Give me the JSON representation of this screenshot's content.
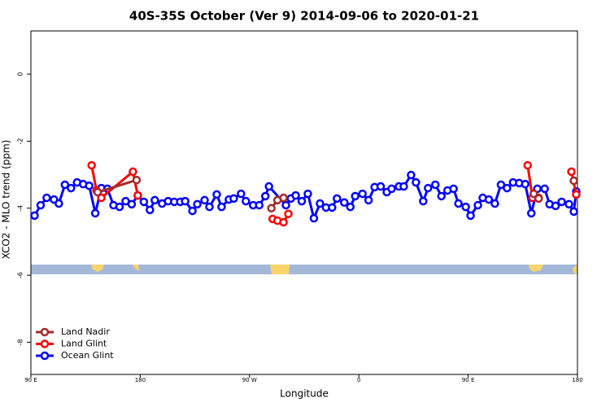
{
  "chart_data": {
    "type": "line",
    "title": "40S-35S October (Ver 9)   2014-09-06 to 2020-01-21",
    "x_label": "Longitude",
    "y_label": "XCO2 - MLO trend (ppm)",
    "xlim": [
      90,
      540
    ],
    "ylim": [
      -8.96,
      1.29
    ],
    "xticks": [
      {
        "value": 90,
        "label": "90 E"
      },
      180,
      {
        "value": 270,
        "label": "90 W"
      },
      {
        "value": 360,
        "label": "0"
      },
      {
        "value": 450,
        "label": "90 E"
      },
      {
        "value": 540,
        "label": "180"
      }
    ],
    "yticks": [
      0,
      -2,
      -4,
      -6,
      -8
    ],
    "legend": "bottom-left",
    "series": [
      {
        "name": "Land Nadir",
        "color": "#a52a2a",
        "x": [
          145,
          177,
          null,
          288,
          293,
          298,
          null,
          504,
          508,
          null,
          537
        ],
        "values": [
          -3.52,
          -3.16,
          null,
          -4.0,
          -3.76,
          -3.69,
          null,
          -3.57,
          -3.71,
          null,
          -3.18
        ]
      },
      {
        "name": "Land Glint",
        "color": "#ff0000",
        "x": [
          140,
          144,
          148,
          174,
          178,
          null,
          289,
          293,
          298,
          302,
          null,
          499,
          503,
          508,
          null,
          535,
          539
        ],
        "values": [
          -2.72,
          -3.47,
          -3.69,
          -2.91,
          -3.62,
          null,
          -4.32,
          -4.37,
          -4.42,
          -4.17,
          null,
          -2.72,
          -3.69,
          -3.69,
          null,
          -2.91,
          -3.59
        ]
      },
      {
        "name": "Ocean Glint",
        "color": "#0000ff",
        "x": [
          93,
          98,
          103,
          109,
          113,
          118,
          123,
          128,
          133,
          138,
          143,
          148,
          153,
          158,
          163,
          168,
          173,
          178,
          183,
          188,
          192,
          198,
          203,
          208,
          213,
          217,
          223,
          227,
          233,
          237,
          243,
          247,
          253,
          257,
          263,
          267,
          273,
          278,
          283,
          286,
          300,
          304,
          308,
          313,
          318,
          323,
          328,
          333,
          338,
          342,
          348,
          353,
          357,
          363,
          368,
          373,
          378,
          383,
          387,
          393,
          397,
          403,
          407,
          413,
          417,
          423,
          428,
          433,
          438,
          442,
          448,
          452,
          458,
          462,
          467,
          472,
          477,
          482,
          487,
          492,
          497,
          502,
          507,
          513,
          517,
          522,
          527,
          533,
          537,
          539
        ],
        "values": [
          -4.22,
          -3.91,
          -3.69,
          -3.74,
          -3.86,
          -3.3,
          -3.4,
          -3.23,
          -3.28,
          -3.33,
          -4.15,
          -3.4,
          -3.42,
          -3.91,
          -3.96,
          -3.79,
          -3.88,
          -3.62,
          -3.81,
          -4.05,
          -3.76,
          -3.86,
          -3.79,
          -3.81,
          -3.81,
          -3.79,
          -4.08,
          -3.88,
          -3.76,
          -3.96,
          -3.59,
          -3.96,
          -3.74,
          -3.71,
          -3.57,
          -3.79,
          -3.91,
          -3.91,
          -3.64,
          -3.35,
          -3.91,
          -3.71,
          -3.62,
          -3.79,
          -3.57,
          -4.3,
          -3.86,
          -3.98,
          -3.98,
          -3.71,
          -3.83,
          -3.96,
          -3.64,
          -3.57,
          -3.76,
          -3.37,
          -3.35,
          -3.52,
          -3.42,
          -3.35,
          -3.35,
          -3.01,
          -3.23,
          -3.79,
          -3.4,
          -3.3,
          -3.64,
          -3.47,
          -3.42,
          -3.86,
          -3.96,
          -4.22,
          -3.91,
          -3.69,
          -3.74,
          -3.86,
          -3.3,
          -3.4,
          -3.23,
          -3.25,
          -3.28,
          -4.15,
          -3.42,
          -3.42,
          -3.88,
          -3.93,
          -3.81,
          -3.88,
          -4.1,
          -3.5
        ]
      }
    ]
  }
}
